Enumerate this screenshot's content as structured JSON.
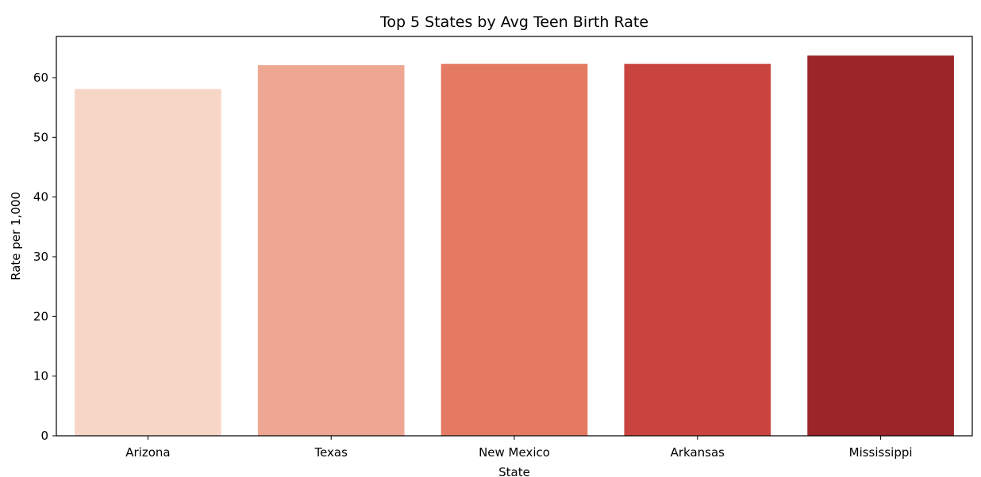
{
  "chart_data": {
    "type": "bar",
    "title": "Top 5 States by Avg Teen Birth Rate",
    "xlabel": "State",
    "ylabel": "Rate per 1,000",
    "categories": [
      "Arizona",
      "Texas",
      "New Mexico",
      "Arkansas",
      "Mississippi"
    ],
    "values": [
      58.1,
      62.1,
      62.3,
      62.3,
      63.7
    ],
    "colors": [
      "#f7d6c8",
      "#eda792",
      "#e57a63",
      "#c9443e",
      "#9c252a"
    ],
    "ylim": [
      0,
      66.9
    ],
    "yticks": [
      0,
      10,
      20,
      30,
      40,
      50,
      60
    ],
    "grid": false,
    "legend": "none"
  }
}
